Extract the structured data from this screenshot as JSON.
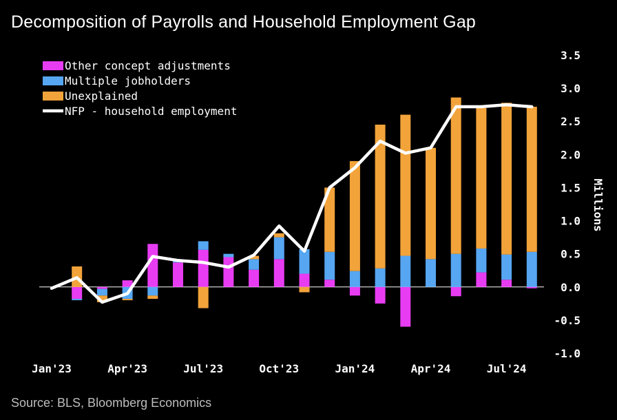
{
  "title": "Decomposition of Payrolls and Household Employment Gap",
  "source": "Source: BLS, Bloomberg Economics",
  "chart_data": {
    "type": "bar",
    "stacked": true,
    "ylabel": "Millions",
    "ylim": [
      -1.0,
      3.5
    ],
    "yticks": [
      "3.5",
      "3.0",
      "2.5",
      "2.0",
      "1.5",
      "1.0",
      "0.5",
      "0.0",
      "-0.5",
      "-1.0"
    ],
    "ytick_values": [
      3.5,
      3.0,
      2.5,
      2.0,
      1.5,
      1.0,
      0.5,
      0.0,
      -0.5,
      -1.0
    ],
    "legend_position": "top-left",
    "months": [
      "2023-01",
      "2023-02",
      "2023-03",
      "2023-04",
      "2023-05",
      "2023-06",
      "2023-07",
      "2023-08",
      "2023-09",
      "2023-10",
      "2023-11",
      "2023-12",
      "2024-01",
      "2024-02",
      "2024-03",
      "2024-04",
      "2024-05",
      "2024-06",
      "2024-07",
      "2024-08"
    ],
    "xtick_labels": [
      {
        "label": "Jan'23",
        "month_index": 0
      },
      {
        "label": "Apr'23",
        "month_index": 3
      },
      {
        "label": "Jul'23",
        "month_index": 6
      },
      {
        "label": "Oct'23",
        "month_index": 9
      },
      {
        "label": "Jan'24",
        "month_index": 12
      },
      {
        "label": "Apr'24",
        "month_index": 15
      },
      {
        "label": "Jul'24",
        "month_index": 18
      }
    ],
    "series": [
      {
        "name": "Other concept adjustments",
        "kind": "bar",
        "color": "#e83cf2",
        "values": [
          0.0,
          -0.18,
          -0.03,
          0.1,
          0.65,
          0.37,
          0.56,
          0.45,
          0.26,
          0.42,
          0.2,
          0.11,
          -0.13,
          -0.25,
          -0.6,
          0.0,
          -0.14,
          0.22,
          0.11,
          -0.02
        ]
      },
      {
        "name": "Multiple jobholders",
        "kind": "bar",
        "color": "#56a6f2",
        "values": [
          0.0,
          -0.02,
          -0.1,
          -0.18,
          -0.13,
          0.02,
          0.13,
          0.05,
          0.16,
          0.33,
          0.37,
          0.42,
          0.24,
          0.28,
          0.47,
          0.42,
          0.5,
          0.36,
          0.38,
          0.53
        ]
      },
      {
        "name": "Unexplained",
        "kind": "bar",
        "color": "#f2a33a",
        "values": [
          0.0,
          0.31,
          -0.1,
          -0.02,
          -0.05,
          0.02,
          -0.32,
          0.0,
          0.05,
          0.06,
          -0.08,
          0.97,
          1.66,
          2.17,
          2.13,
          1.68,
          2.36,
          2.12,
          2.29,
          2.19
        ]
      },
      {
        "name": "NFP - household employment",
        "kind": "line",
        "color": "#ffffff",
        "values": [
          -0.02,
          0.14,
          -0.23,
          -0.1,
          0.46,
          0.4,
          0.37,
          0.3,
          0.48,
          0.92,
          0.54,
          1.5,
          1.8,
          2.2,
          2.02,
          2.1,
          2.72,
          2.72,
          2.75,
          2.72
        ]
      }
    ]
  }
}
